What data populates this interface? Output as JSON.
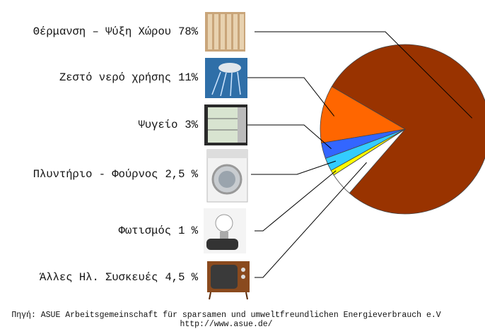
{
  "chart_data": {
    "type": "pie",
    "categories": [
      "Θέρμανση – Ψύξη Χώρου",
      "Ζεστό νερό χρήσης",
      "Ψυγείο",
      "Πλυντήριο - Φούρνος",
      "Φωτισμός",
      "Άλλες Ηλ. Συσκευές"
    ],
    "values": [
      78,
      11,
      3,
      2.5,
      1,
      4.5
    ],
    "value_labels": [
      "78%",
      "11%",
      "3%",
      "2,5 %",
      "1 %",
      "4,5 %"
    ],
    "colors": [
      "#993300",
      "#ff6600",
      "#3366ff",
      "#33ccff",
      "#ffff00",
      "#ffffff"
    ],
    "source": "Πηγή: ASUE Arbeitsgemeinschaft für sparsamen und umweltfreundlichen Energieverbrauch e.V",
    "source_url": "http://www.asue.de/"
  }
}
